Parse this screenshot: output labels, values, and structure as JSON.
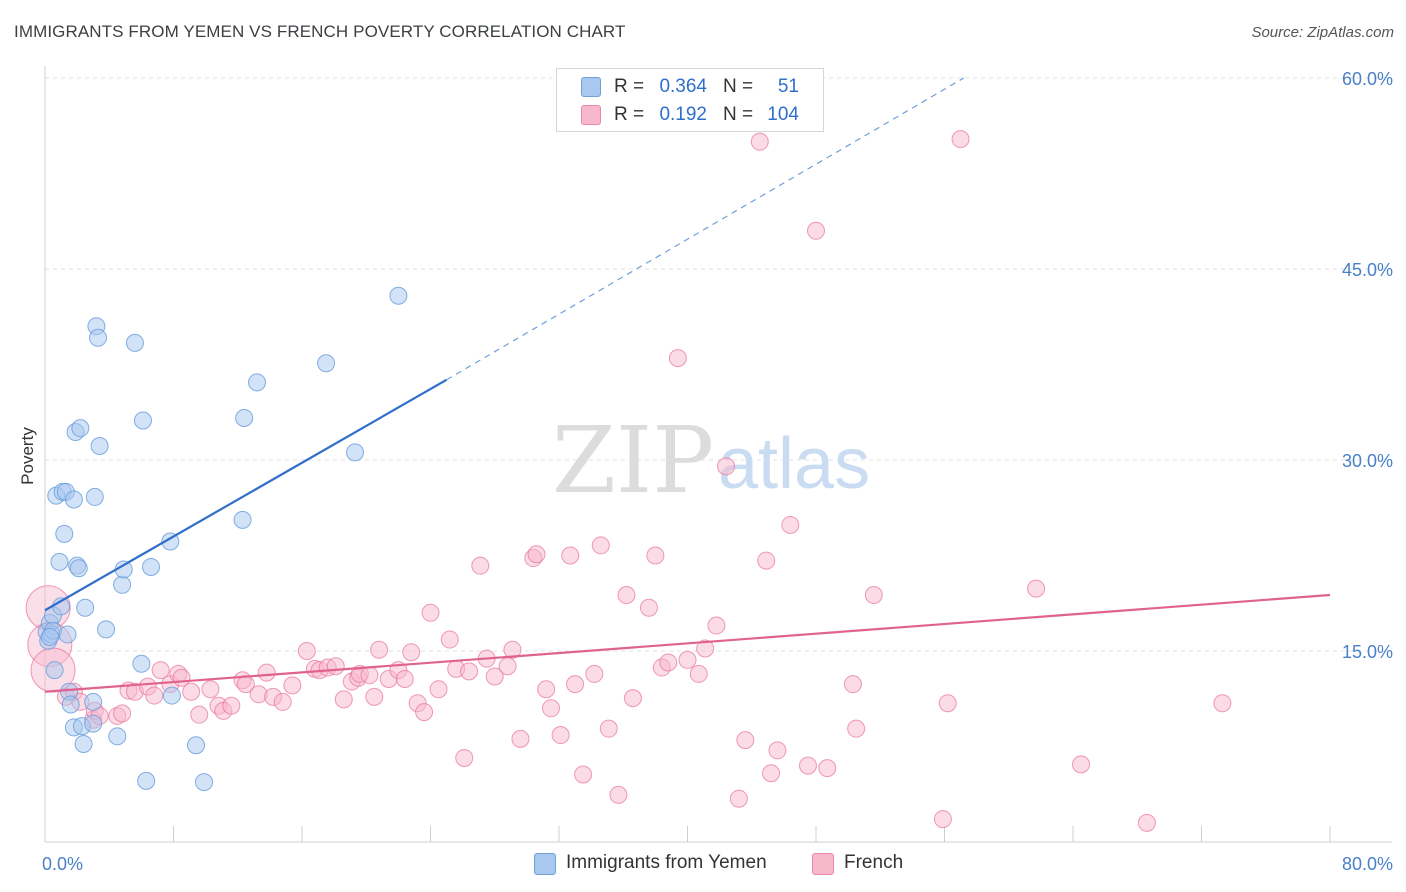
{
  "title": "IMMIGRANTS FROM YEMEN VS FRENCH POVERTY CORRELATION CHART",
  "source": "Source: ZipAtlas.com",
  "watermark": {
    "zip": "ZIP",
    "atlas": "atlas"
  },
  "legend": {
    "rows": [
      {
        "r_label": "R =",
        "r_value": "0.364",
        "n_label": "N =",
        "n_value": "51",
        "color": "#a8c8f0",
        "border": "#6fa0dc"
      },
      {
        "r_label": "R =",
        "r_value": "0.192",
        "n_label": "N =",
        "n_value": "104",
        "color": "#f7b8cb",
        "border": "#e889a7"
      }
    ]
  },
  "bottom_legend": [
    {
      "label": "Immigrants from Yemen",
      "color": "#a8c8f0",
      "border": "#6fa0dc"
    },
    {
      "label": "French",
      "color": "#f7b8cb",
      "border": "#e889a7"
    }
  ],
  "chart_data": {
    "type": "scatter",
    "title": "IMMIGRANTS FROM YEMEN VS FRENCH POVERTY CORRELATION CHART",
    "xlabel": "",
    "ylabel": "Poverty",
    "xlim": [
      0,
      80
    ],
    "ylim": [
      0,
      60
    ],
    "x_tick_labels": [
      "0.0%",
      "80.0%"
    ],
    "y_ticks": [
      15,
      30,
      45,
      60
    ],
    "y_tick_labels": [
      "15.0%",
      "30.0%",
      "45.0%",
      "60.0%"
    ],
    "grid": true,
    "legend_placement": "top-center",
    "series": [
      {
        "name": "Immigrants from Yemen",
        "color": "#6fa0dc",
        "fill": "#a8c8f0",
        "trend": {
          "x0": 0,
          "y0": 18.2,
          "x1": 25,
          "y1": 36.3,
          "dash_to_x": 57.2,
          "dash_to_y": 60
        },
        "points": [
          [
            0.1,
            16.5
          ],
          [
            0.2,
            15.8
          ],
          [
            0.3,
            17.2
          ],
          [
            0.4,
            16.3
          ],
          [
            0.5,
            17.8
          ],
          [
            0.5,
            16.6
          ],
          [
            0.6,
            13.5
          ],
          [
            0.7,
            27.2
          ],
          [
            0.9,
            22.0
          ],
          [
            1.0,
            18.5
          ],
          [
            1.1,
            27.5
          ],
          [
            1.2,
            24.2
          ],
          [
            1.3,
            27.5
          ],
          [
            1.4,
            16.3
          ],
          [
            1.5,
            11.8
          ],
          [
            1.6,
            10.8
          ],
          [
            1.8,
            9.0
          ],
          [
            1.8,
            26.9
          ],
          [
            1.9,
            32.2
          ],
          [
            2.0,
            21.7
          ],
          [
            2.1,
            21.5
          ],
          [
            2.2,
            32.5
          ],
          [
            2.3,
            9.1
          ],
          [
            2.4,
            7.7
          ],
          [
            2.5,
            18.4
          ],
          [
            3.0,
            11.0
          ],
          [
            3.0,
            9.3
          ],
          [
            3.1,
            27.1
          ],
          [
            3.2,
            40.5
          ],
          [
            3.3,
            39.6
          ],
          [
            3.4,
            31.1
          ],
          [
            3.8,
            16.7
          ],
          [
            4.5,
            8.3
          ],
          [
            4.8,
            20.2
          ],
          [
            4.9,
            21.4
          ],
          [
            5.6,
            39.2
          ],
          [
            6.0,
            14.0
          ],
          [
            6.1,
            33.1
          ],
          [
            6.3,
            4.8
          ],
          [
            6.6,
            21.6
          ],
          [
            7.8,
            23.6
          ],
          [
            7.9,
            11.5
          ],
          [
            9.4,
            7.6
          ],
          [
            9.9,
            4.7
          ],
          [
            12.3,
            25.3
          ],
          [
            12.4,
            33.3
          ],
          [
            13.2,
            36.1
          ],
          [
            17.5,
            37.6
          ],
          [
            19.3,
            30.6
          ],
          [
            22.0,
            42.9
          ],
          [
            0.3,
            16.1
          ]
        ]
      },
      {
        "name": "French",
        "color": "#e8729a",
        "fill": "#f7b8cb",
        "trend": {
          "x0": 0,
          "y0": 11.8,
          "x1": 80,
          "y1": 19.4
        },
        "points": [
          [
            0.2,
            18.4
          ],
          [
            0.3,
            15.5
          ],
          [
            0.5,
            13.5
          ],
          [
            1.3,
            11.4
          ],
          [
            1.8,
            11.8
          ],
          [
            2.2,
            11.0
          ],
          [
            3.0,
            9.6
          ],
          [
            3.1,
            10.3
          ],
          [
            3.4,
            9.9
          ],
          [
            4.5,
            9.9
          ],
          [
            4.8,
            10.1
          ],
          [
            5.2,
            11.9
          ],
          [
            5.6,
            11.8
          ],
          [
            6.4,
            12.2
          ],
          [
            6.8,
            11.5
          ],
          [
            7.2,
            13.5
          ],
          [
            7.8,
            12.4
          ],
          [
            8.3,
            13.2
          ],
          [
            8.5,
            12.9
          ],
          [
            9.1,
            11.8
          ],
          [
            9.6,
            10.0
          ],
          [
            10.3,
            12.0
          ],
          [
            10.8,
            10.7
          ],
          [
            11.1,
            10.3
          ],
          [
            11.6,
            10.7
          ],
          [
            12.3,
            12.7
          ],
          [
            12.5,
            12.4
          ],
          [
            13.3,
            11.6
          ],
          [
            13.8,
            13.3
          ],
          [
            14.2,
            11.4
          ],
          [
            14.8,
            11.0
          ],
          [
            15.4,
            12.3
          ],
          [
            16.3,
            15.0
          ],
          [
            16.8,
            13.6
          ],
          [
            17.1,
            13.5
          ],
          [
            17.6,
            13.7
          ],
          [
            18.1,
            13.8
          ],
          [
            18.6,
            11.2
          ],
          [
            19.1,
            12.6
          ],
          [
            19.5,
            12.9
          ],
          [
            19.6,
            13.2
          ],
          [
            20.2,
            13.1
          ],
          [
            20.5,
            11.4
          ],
          [
            20.8,
            15.1
          ],
          [
            21.4,
            12.8
          ],
          [
            22.0,
            13.5
          ],
          [
            22.4,
            12.8
          ],
          [
            22.8,
            14.9
          ],
          [
            23.2,
            10.9
          ],
          [
            23.6,
            10.2
          ],
          [
            24.0,
            18.0
          ],
          [
            24.5,
            12.0
          ],
          [
            25.2,
            15.9
          ],
          [
            25.6,
            13.6
          ],
          [
            26.1,
            6.6
          ],
          [
            26.4,
            13.4
          ],
          [
            27.1,
            21.7
          ],
          [
            27.5,
            14.4
          ],
          [
            28.0,
            13.0
          ],
          [
            28.8,
            13.8
          ],
          [
            29.1,
            15.1
          ],
          [
            29.6,
            8.1
          ],
          [
            30.4,
            22.3
          ],
          [
            30.6,
            22.6
          ],
          [
            31.2,
            12.0
          ],
          [
            31.5,
            10.5
          ],
          [
            32.1,
            8.4
          ],
          [
            32.7,
            22.5
          ],
          [
            33.0,
            12.4
          ],
          [
            33.5,
            5.3
          ],
          [
            34.2,
            13.2
          ],
          [
            34.6,
            23.3
          ],
          [
            35.1,
            8.9
          ],
          [
            35.7,
            3.7
          ],
          [
            36.2,
            19.4
          ],
          [
            36.6,
            11.3
          ],
          [
            37.6,
            18.4
          ],
          [
            38.0,
            22.5
          ],
          [
            38.4,
            13.7
          ],
          [
            38.8,
            14.1
          ],
          [
            39.4,
            38.0
          ],
          [
            40.0,
            14.3
          ],
          [
            40.7,
            13.2
          ],
          [
            41.1,
            15.2
          ],
          [
            41.8,
            17.0
          ],
          [
            42.4,
            29.5
          ],
          [
            43.2,
            3.4
          ],
          [
            43.6,
            8.0
          ],
          [
            44.5,
            55.0
          ],
          [
            44.9,
            22.1
          ],
          [
            45.2,
            5.4
          ],
          [
            45.6,
            7.2
          ],
          [
            46.4,
            24.9
          ],
          [
            47.5,
            6.0
          ],
          [
            48.0,
            48.0
          ],
          [
            48.7,
            5.8
          ],
          [
            50.3,
            12.4
          ],
          [
            50.5,
            8.9
          ],
          [
            51.6,
            19.4
          ],
          [
            55.9,
            1.8
          ],
          [
            56.2,
            10.9
          ],
          [
            57.0,
            55.2
          ],
          [
            61.7,
            19.9
          ],
          [
            64.5,
            6.1
          ],
          [
            68.6,
            1.5
          ],
          [
            73.3,
            10.9
          ]
        ]
      }
    ]
  }
}
